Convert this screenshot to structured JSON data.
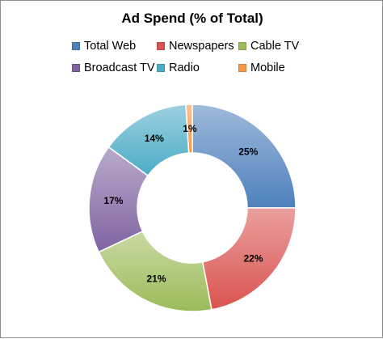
{
  "chart_data": {
    "type": "pie",
    "subtype": "doughnut",
    "title": "Ad Spend (% of Total)",
    "legend_position": "top",
    "unit": "%",
    "slices": [
      {
        "name": "Total Web",
        "value": 25,
        "label": "25%",
        "color": "#4f81bd"
      },
      {
        "name": "Newspapers",
        "value": 22,
        "label": "22%",
        "color": "#d9534f"
      },
      {
        "name": "Cable TV",
        "value": 21,
        "label": "21%",
        "color": "#9bbb59"
      },
      {
        "name": "Broadcast TV",
        "value": 17,
        "label": "17%",
        "color": "#8064a2"
      },
      {
        "name": "Radio",
        "value": 14,
        "label": "14%",
        "color": "#4bacc6"
      },
      {
        "name": "Mobile",
        "value": 1,
        "label": "1%",
        "color": "#f79646"
      }
    ]
  }
}
